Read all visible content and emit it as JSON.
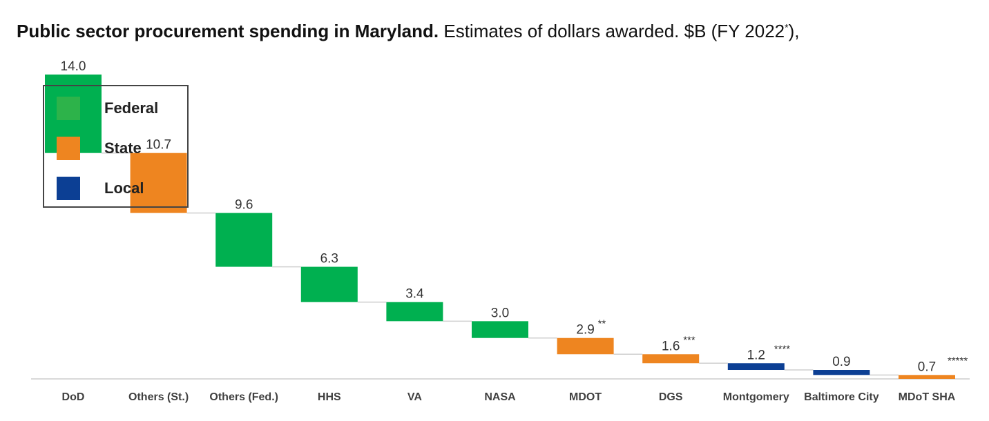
{
  "title": {
    "bold": "Public sector procurement spending in Maryland.",
    "rest": " Estimates of dollars awarded. $B (FY 2022",
    "sup": "*",
    "tail": "),"
  },
  "colors": {
    "federal": "#00b050",
    "state": "#ee8520",
    "local": "#0c3f94",
    "axis": "#d9d9d9",
    "connector": "#cfcfcf",
    "text": "#333333"
  },
  "legend": [
    {
      "label": "Federal",
      "color": "#2db34a"
    },
    {
      "label": "State",
      "color": "#ee8520"
    },
    {
      "label": "Local",
      "color": "#0c3f94"
    }
  ],
  "chart_data": {
    "type": "bar",
    "subtype": "waterfall",
    "categories": [
      "DoD",
      "Others (St.)",
      "Others (Fed.)",
      "HHS",
      "VA",
      "NASA",
      "MDOT",
      "DGS",
      "Montgomery",
      "Baltimore City",
      "MDoT SHA"
    ],
    "values": [
      14.0,
      10.7,
      9.6,
      6.3,
      3.4,
      3.0,
      2.9,
      1.6,
      1.2,
      0.9,
      0.7
    ],
    "value_labels": [
      "14.0",
      "10.7",
      "9.6",
      "6.3",
      "3.4",
      "3.0",
      "2.9",
      "1.6",
      "1.2",
      "0.9",
      "0.7"
    ],
    "footnote_marks": [
      "",
      "",
      "",
      "",
      "",
      "",
      "**",
      "***",
      "****",
      "",
      "*****"
    ],
    "groups": [
      "Federal",
      "State",
      "Federal",
      "Federal",
      "Federal",
      "Federal",
      "State",
      "State",
      "Local",
      "Local",
      "State"
    ],
    "ylim": [
      0,
      54.3
    ],
    "grid": false,
    "legend_position": "top-left"
  }
}
